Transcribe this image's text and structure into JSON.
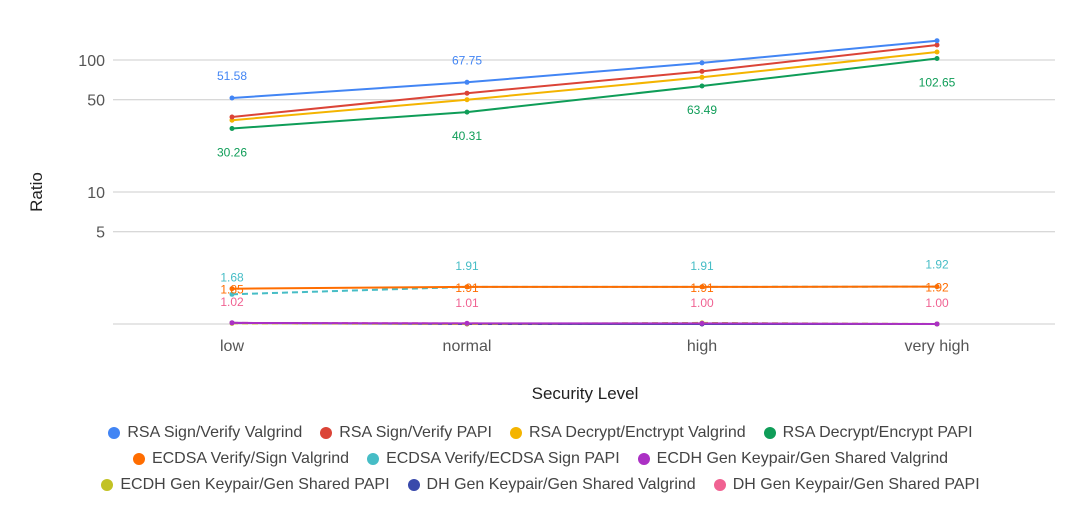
{
  "chart_data": {
    "type": "line",
    "xlabel": "Security Level",
    "ylabel": "Ratio",
    "yscale": "log",
    "categories": [
      "low",
      "normal",
      "high",
      "very high"
    ],
    "y_ticks": [
      5,
      10,
      50,
      100
    ],
    "y_tick_labels": [
      "5",
      "10",
      "50",
      "100"
    ],
    "ylim": [
      1,
      200
    ],
    "grid": true,
    "legend_position": "bottom",
    "series": [
      {
        "name": "RSA Sign/Verify Valgrind",
        "color": "#4285F4",
        "style": "solid",
        "values": [
          51.58,
          67.75,
          95,
          140
        ],
        "labels": [
          "51.58",
          "67.75",
          "",
          ""
        ]
      },
      {
        "name": "RSA Sign/Verify PAPI",
        "color": "#DB4437",
        "style": "solid",
        "values": [
          37,
          56,
          82,
          130
        ],
        "labels": [
          "",
          "",
          "",
          ""
        ]
      },
      {
        "name": "RSA Decrypt/Enctrypt Valgrind",
        "color": "#F4B400",
        "style": "solid",
        "values": [
          35,
          50,
          74,
          115
        ],
        "labels": [
          "",
          "",
          "",
          ""
        ]
      },
      {
        "name": "RSA Decrypt/Encrypt PAPI",
        "color": "#0F9D58",
        "style": "solid",
        "values": [
          30.26,
          40.31,
          63.49,
          102.65
        ],
        "labels": [
          "30.26",
          "40.31",
          "63.49",
          "102.65"
        ]
      },
      {
        "name": "ECDSA Verify/Sign Valgrind",
        "color": "#FF6D00",
        "style": "solid",
        "values": [
          1.85,
          1.91,
          1.91,
          1.92
        ],
        "labels": [
          "1.85",
          "1.91",
          "1.91",
          "1.92"
        ]
      },
      {
        "name": "ECDSA Verify/ECDSA Sign PAPI",
        "color": "#46BDC6",
        "style": "dashed",
        "values": [
          1.68,
          1.91,
          1.91,
          1.92
        ],
        "labels": [
          "1.68",
          "1.91",
          "1.91",
          "1.92"
        ]
      },
      {
        "name": "ECDH Gen Keypair/Gen Shared Valgrind",
        "color": "#AB30C4",
        "style": "solid",
        "values": [
          1.02,
          1.01,
          1.01,
          1.0
        ],
        "labels": [
          "",
          "",
          "",
          ""
        ]
      },
      {
        "name": "ECDH Gen Keypair/Gen Shared PAPI",
        "color": "#C2C224",
        "style": "dashed",
        "values": [
          1.01,
          1.0,
          1.02,
          1.0
        ],
        "labels": [
          "",
          "",
          "",
          ""
        ]
      },
      {
        "name": "DH Gen Keypair/Gen Shared Valgrind",
        "color": "#3949AB",
        "style": "solid",
        "values": [
          1.02,
          1.0,
          1.0,
          1.0
        ],
        "labels": [
          "",
          "",
          "",
          ""
        ]
      },
      {
        "name": "DH Gen Keypair/Gen Shared PAPI",
        "color": "#F06292",
        "style": "dashed",
        "values": [
          1.02,
          1.01,
          1.0,
          1.0
        ],
        "labels": [
          "1.02",
          "1.01",
          "1.00",
          "1.00"
        ]
      }
    ]
  }
}
